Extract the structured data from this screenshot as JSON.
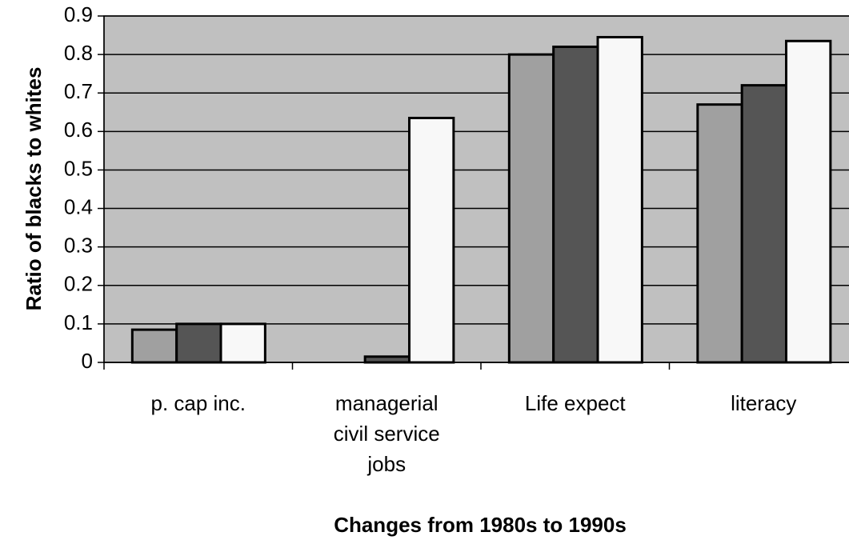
{
  "chart_data": {
    "type": "bar",
    "xlabel": "Changes from 1980s to 1990s",
    "ylabel": "Ratio of blacks to whites",
    "categories": [
      "p. cap inc.",
      "managerial civil service jobs",
      "Life expect",
      "literacy"
    ],
    "series": [
      {
        "color": "#a0a0a0",
        "values": [
          0.085,
          0,
          0.8,
          0.67
        ]
      },
      {
        "color": "#555555",
        "values": [
          0.1,
          0.015,
          0.82,
          0.72
        ]
      },
      {
        "color": "#f8f8f8",
        "values": [
          0.1,
          0.635,
          0.845,
          0.835
        ]
      }
    ],
    "ylim": [
      0,
      0.9
    ],
    "yticks": [
      0,
      0.1,
      0.2,
      0.3,
      0.4,
      0.5,
      0.6,
      0.7,
      0.8,
      0.9
    ],
    "grid": true,
    "background": "#c0c0c0"
  }
}
